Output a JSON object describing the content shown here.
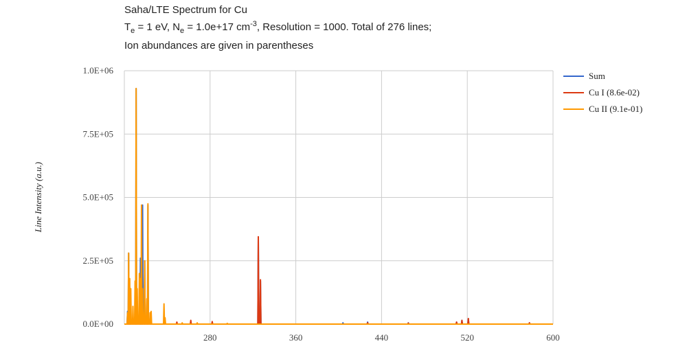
{
  "title": {
    "line1": "Saha/LTE Spectrum for Cu",
    "line2_prefix": "T",
    "line2_sub_e": "e",
    "line2_a": " = 1 eV, N",
    "line2_sub_e2": "e",
    "line2_b": " = 1.0e+17 cm",
    "line2_sup": "-3",
    "line2_c": ", Resolution = 1000. Total of 276 lines;",
    "line3": "Ion abundances are given in parentheses"
  },
  "chart_data": {
    "type": "line",
    "title": "Saha/LTE Spectrum for Cu",
    "ylabel": "Line Intensity (a.u.)",
    "xlabel": "",
    "xlim": [
      200,
      600
    ],
    "ylim": [
      0,
      1000000
    ],
    "x_ticks": [
      280,
      360,
      440,
      520,
      600
    ],
    "y_ticks": [
      "0.0E+00",
      "2.5E+05",
      "5.0E+05",
      "7.5E+05",
      "1.0E+06"
    ],
    "y_tick_values": [
      0,
      250000,
      500000,
      750000,
      1000000
    ],
    "grid": true,
    "legend_position": "right",
    "series": [
      {
        "name": "Sum",
        "color": "#3366cc",
        "peaks": [
          [
            203,
            50000
          ],
          [
            204,
            280000
          ],
          [
            211,
            930000
          ],
          [
            215,
            260000
          ],
          [
            217,
            470000
          ],
          [
            219,
            250000
          ],
          [
            222,
            470000
          ],
          [
            325,
            340000
          ],
          [
            327,
            170000
          ],
          [
            404,
            5000
          ],
          [
            427,
            8000
          ],
          [
            465,
            5000
          ],
          [
            510,
            8000
          ],
          [
            515,
            15000
          ],
          [
            521,
            20000
          ],
          [
            578,
            5000
          ]
        ]
      },
      {
        "name": "Cu I (8.6e-02)",
        "color": "#dc3912",
        "peaks": [
          [
            216,
            10000
          ],
          [
            218,
            15000
          ],
          [
            249,
            8000
          ],
          [
            262,
            15000
          ],
          [
            282,
            10000
          ],
          [
            325,
            345000
          ],
          [
            327,
            175000
          ],
          [
            427,
            5000
          ],
          [
            465,
            4000
          ],
          [
            510,
            8000
          ],
          [
            515,
            15000
          ],
          [
            521,
            22000
          ],
          [
            578,
            5000
          ]
        ]
      },
      {
        "name": "Cu II (9.1e-01)",
        "color": "#ff9900",
        "peaks": [
          [
            203,
            45000
          ],
          [
            204,
            280000
          ],
          [
            205,
            180000
          ],
          [
            206,
            140000
          ],
          [
            208,
            70000
          ],
          [
            210,
            170000
          ],
          [
            211,
            930000
          ],
          [
            212,
            140000
          ],
          [
            214,
            200000
          ],
          [
            215,
            180000
          ],
          [
            216,
            470000
          ],
          [
            217,
            140000
          ],
          [
            219,
            250000
          ],
          [
            221,
            100000
          ],
          [
            222,
            475000
          ],
          [
            224,
            45000
          ],
          [
            225,
            50000
          ],
          [
            237,
            80000
          ],
          [
            238,
            25000
          ],
          [
            254,
            5000
          ],
          [
            268,
            5000
          ],
          [
            296,
            3000
          ]
        ]
      }
    ]
  }
}
